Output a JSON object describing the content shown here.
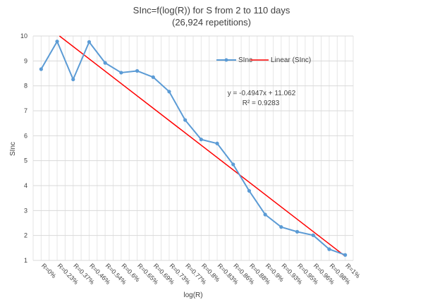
{
  "chart_data": {
    "type": "line",
    "title": [
      "SInc=f(log(R)) for S from 2 to 110 days",
      "(26,924 repetitions)"
    ],
    "xlabel": "log(R)",
    "ylabel": "SInc",
    "ylim": [
      1,
      10
    ],
    "yticks": [
      1,
      2,
      3,
      4,
      5,
      6,
      7,
      8,
      9,
      10
    ],
    "categories": [
      "R=0%",
      "R=0.23%",
      "R=0.37%",
      "R=0.46%",
      "R=0.54%",
      "R=0.6%",
      "R=0.65%",
      "R=0.69%",
      "R=0.73%",
      "R=0.77%",
      "R=0.8%",
      "R=0.83%",
      "R=0.86%",
      "R=0.88%",
      "R=0.9%",
      "R=0.93%",
      "R=0.95%",
      "R=0.96%",
      "R=0.98%",
      "R=1%"
    ],
    "grid": true,
    "legend_position": "top-right",
    "series": [
      {
        "name": "SInc",
        "color": "#5B9BD5",
        "values": [
          8.67,
          9.78,
          8.26,
          9.76,
          8.92,
          8.53,
          8.6,
          8.35,
          7.77,
          6.63,
          5.85,
          5.69,
          4.85,
          3.79,
          2.84,
          2.34,
          2.15,
          2.01,
          1.45,
          1.22
        ]
      }
    ],
    "trendline": {
      "name": "Linear (SInc)",
      "color": "#FF0000",
      "equation": "y = -0.4947x + 11.062",
      "r_squared": "R² = 0.9283",
      "slope": -0.4947,
      "intercept": 11.062
    }
  }
}
